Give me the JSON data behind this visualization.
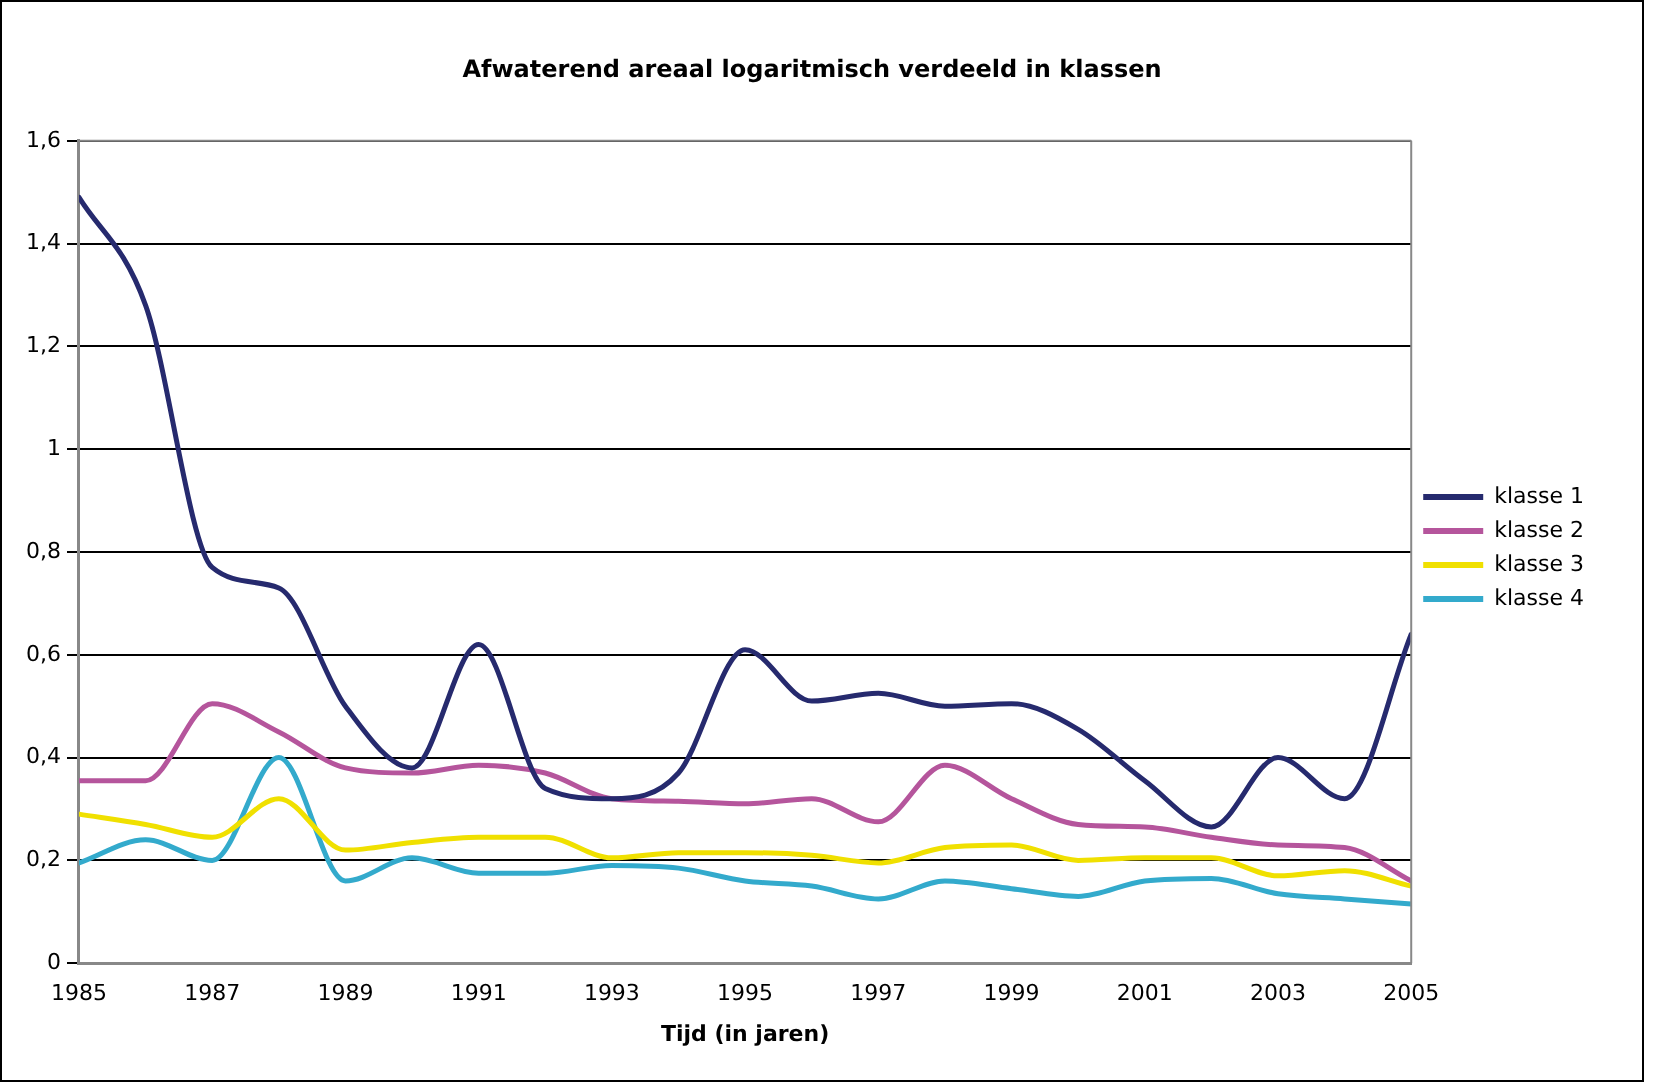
{
  "chart_data": {
    "type": "line",
    "title": "Afwaterend areaal logaritmisch verdeeld in klassen",
    "xlabel": "Tijd (in jaren)",
    "x": [
      1985,
      1986,
      1987,
      1988,
      1989,
      1990,
      1991,
      1992,
      1993,
      1994,
      1995,
      1996,
      1997,
      1998,
      1999,
      2000,
      2001,
      2002,
      2003,
      2004,
      2005
    ],
    "series": [
      {
        "name": "klasse 1",
        "color": "#262a6e",
        "values": [
          1.49,
          1.28,
          0.77,
          0.73,
          0.5,
          0.38,
          0.62,
          0.34,
          0.32,
          0.37,
          0.61,
          0.51,
          0.525,
          0.5,
          0.505,
          0.455,
          0.355,
          0.265,
          0.4,
          0.32,
          0.64
        ]
      },
      {
        "name": "klasse 2",
        "color": "#b5559c",
        "values": [
          0.355,
          0.355,
          0.505,
          0.45,
          0.38,
          0.37,
          0.385,
          0.37,
          0.32,
          0.315,
          0.31,
          0.32,
          0.275,
          0.385,
          0.32,
          0.27,
          0.265,
          0.245,
          0.23,
          0.225,
          0.16
        ]
      },
      {
        "name": "klasse 3",
        "color": "#f0e000",
        "values": [
          0.29,
          0.27,
          0.245,
          0.32,
          0.22,
          0.235,
          0.245,
          0.245,
          0.205,
          0.215,
          0.215,
          0.21,
          0.195,
          0.225,
          0.23,
          0.2,
          0.205,
          0.205,
          0.17,
          0.18,
          0.15
        ]
      },
      {
        "name": "klasse 4",
        "color": "#33aacc",
        "values": [
          0.195,
          0.24,
          0.2,
          0.4,
          0.16,
          0.205,
          0.175,
          0.175,
          0.19,
          0.185,
          0.16,
          0.15,
          0.125,
          0.16,
          0.145,
          0.13,
          0.16,
          0.165,
          0.135,
          0.125,
          0.115
        ]
      }
    ],
    "xlim": [
      1985,
      2005
    ],
    "xticks": [
      1985,
      1987,
      1989,
      1991,
      1993,
      1995,
      1997,
      1999,
      2001,
      2003,
      2005
    ],
    "ylim": [
      0,
      1.6
    ],
    "yticks": [
      0,
      {
        "value": 0.2,
        "label": "0,2"
      },
      {
        "value": 0.4,
        "label": "0,4"
      },
      {
        "value": 0.6,
        "label": "0,6"
      },
      {
        "value": 0.8,
        "label": "0,8"
      },
      1,
      {
        "value": 1.2,
        "label": "1,2"
      },
      {
        "value": 1.4,
        "label": "1,4"
      },
      {
        "value": 1.6,
        "label": "1,6"
      }
    ],
    "grid": "y",
    "legend": "right",
    "marker": "none",
    "line_style": "solid"
  }
}
